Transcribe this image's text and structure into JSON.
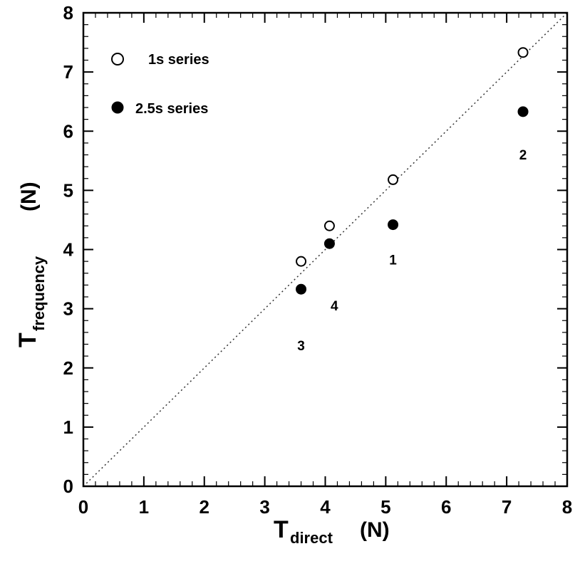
{
  "chart_data": {
    "type": "scatter",
    "xlabel_main": "T",
    "xlabel_sub": "direct",
    "xlabel_unit": "(N)",
    "ylabel_main": "T",
    "ylabel_sub": "frequency",
    "ylabel_unit": "(N)",
    "xlim": [
      0,
      8
    ],
    "ylim": [
      0,
      8
    ],
    "x_ticks": [
      0,
      1,
      2,
      3,
      4,
      5,
      6,
      7,
      8
    ],
    "y_ticks": [
      0,
      1,
      2,
      3,
      4,
      5,
      6,
      7,
      8
    ],
    "grid": false,
    "legend_position": "top-left",
    "reference_line": {
      "style": "dotted",
      "from": [
        0,
        0
      ],
      "to": [
        8,
        8
      ]
    },
    "series": [
      {
        "name": "1s series",
        "marker": "open-circle",
        "points": [
          {
            "x": 3.6,
            "y": 3.8
          },
          {
            "x": 4.07,
            "y": 4.4
          },
          {
            "x": 5.12,
            "y": 5.18
          },
          {
            "x": 7.27,
            "y": 7.33
          }
        ]
      },
      {
        "name": "2.5s series",
        "marker": "filled-circle",
        "points": [
          {
            "x": 3.6,
            "y": 3.33
          },
          {
            "x": 4.07,
            "y": 4.1
          },
          {
            "x": 5.12,
            "y": 4.42
          },
          {
            "x": 7.27,
            "y": 6.33
          }
        ]
      }
    ],
    "annotations": [
      {
        "text": "1",
        "x": 5.12,
        "y": 3.75
      },
      {
        "text": "2",
        "x": 7.27,
        "y": 5.52
      },
      {
        "text": "3",
        "x": 3.6,
        "y": 2.3
      },
      {
        "text": "4",
        "x": 4.15,
        "y": 2.97
      }
    ]
  }
}
